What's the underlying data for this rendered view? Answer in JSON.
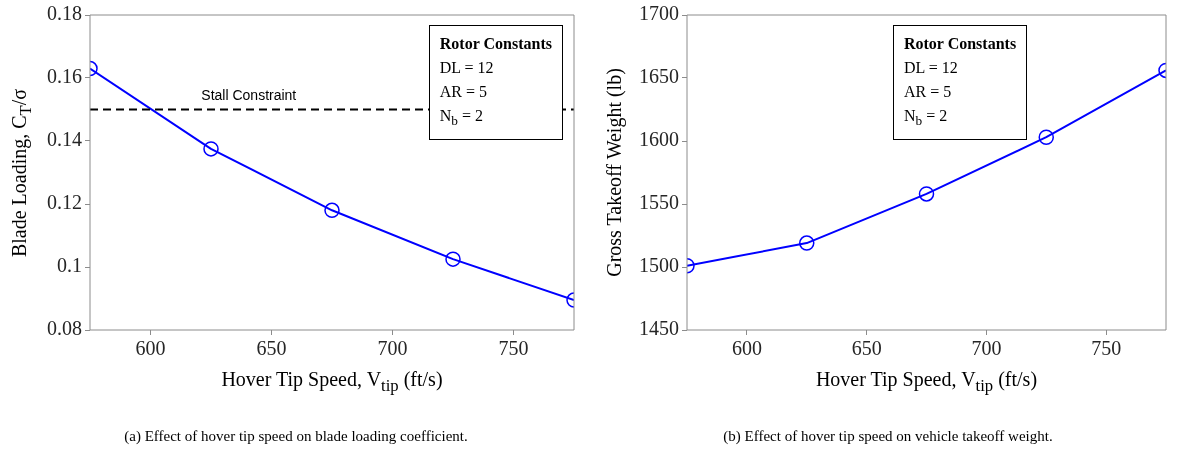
{
  "chart_data": [
    {
      "type": "line",
      "xlabel": "Hover Tip Speed, V$_{tip}$ (ft/s)",
      "ylabel": "Blade Loading, C$_{T}$/σ",
      "x": [
        575,
        625,
        675,
        725,
        775
      ],
      "series": [
        {
          "color": "#0000ff",
          "values": [
            0.163,
            0.1375,
            0.118,
            0.1025,
            0.0895
          ]
        }
      ],
      "xlim": [
        575,
        775
      ],
      "xticks": [
        600,
        650,
        700,
        750
      ],
      "ylim": [
        0.08,
        0.18
      ],
      "yticks": [
        0.08,
        0.1,
        0.12,
        0.14,
        0.16,
        0.18
      ],
      "marker": "circle",
      "line_style": "solid",
      "grid": false,
      "legend": false,
      "ref_lines": [
        {
          "axis": "y",
          "value": 0.15,
          "label": "Stall Constraint",
          "color": "#000000",
          "line_style": "dashed"
        }
      ],
      "annotations": [
        "Rotor Constants",
        "DL = 12",
        "AR = 5",
        "N$_{b}$ = 2",
        "(a)  Effect of hover tip speed on blade loading coefficient."
      ]
    },
    {
      "type": "line",
      "xlabel": "Hover Tip Speed, V$_{tip}$ (ft/s)",
      "ylabel": "Gross Takeoff Weight (lb)",
      "x": [
        575,
        625,
        675,
        725,
        775
      ],
      "series": [
        {
          "color": "#0000ff",
          "values": [
            1501,
            1519,
            1558,
            1603,
            1656
          ]
        }
      ],
      "xlim": [
        575,
        775
      ],
      "xticks": [
        600,
        650,
        700,
        750
      ],
      "ylim": [
        1450,
        1700
      ],
      "yticks": [
        1450,
        1500,
        1550,
        1600,
        1650,
        1700
      ],
      "marker": "circle",
      "line_style": "solid",
      "grid": false,
      "legend": false,
      "annotations": [
        "Rotor Constants",
        "DL = 12",
        "AR = 5",
        "N$_{b}$ = 2",
        "(b)  Effect of hover tip speed on vehicle takeoff weight."
      ]
    }
  ]
}
